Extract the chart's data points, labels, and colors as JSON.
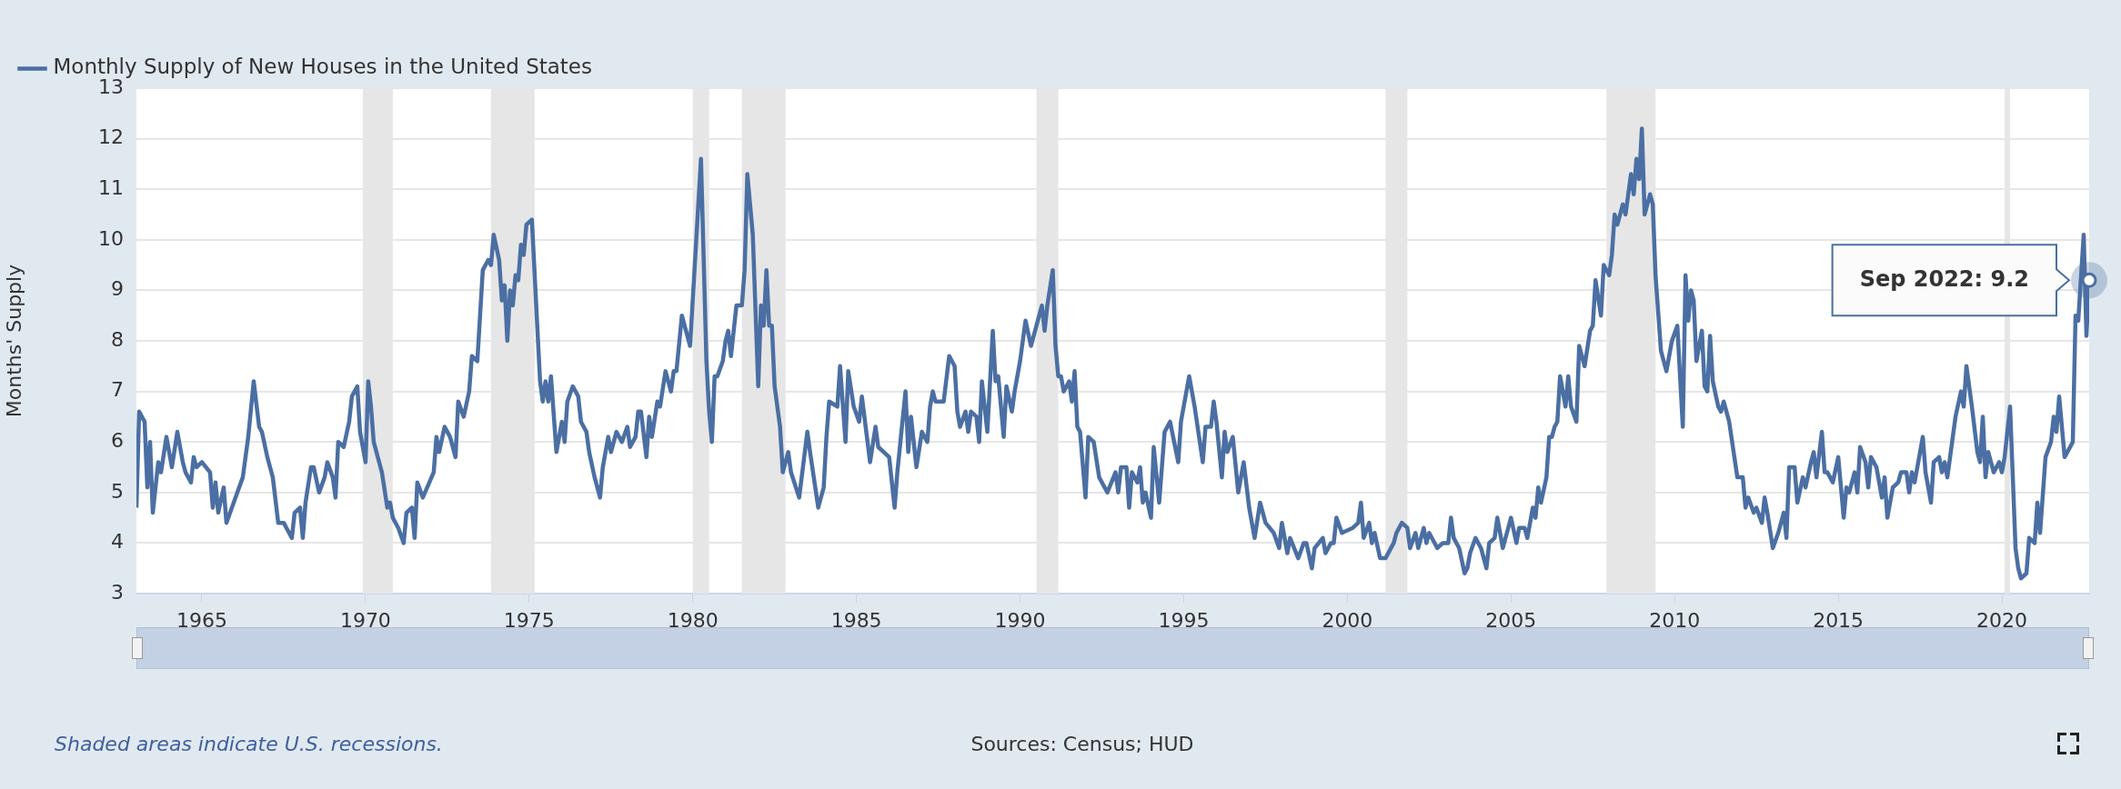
{
  "chart_data": {
    "type": "line",
    "ylabel": "Months' Supply",
    "legend": "top left",
    "grid": "y",
    "xlim": [
      "1963-01",
      "2022-09"
    ],
    "xticks": [
      "1965",
      "1970",
      "1975",
      "1980",
      "1985",
      "1990",
      "1995",
      "2000",
      "2005",
      "2010",
      "2015",
      "2020"
    ],
    "ylim": [
      3,
      13
    ],
    "yticks": [
      3,
      4,
      5,
      6,
      7,
      8,
      9,
      10,
      11,
      12,
      13
    ],
    "bands": [
      {
        "axis": "x",
        "from": "1969-12",
        "to": "1970-11",
        "color": "#e6e6e6"
      },
      {
        "axis": "x",
        "from": "1973-11",
        "to": "1975-03",
        "color": "#e6e6e6"
      },
      {
        "axis": "x",
        "from": "1980-01",
        "to": "1980-07",
        "color": "#e6e6e6"
      },
      {
        "axis": "x",
        "from": "1981-07",
        "to": "1982-11",
        "color": "#e6e6e6"
      },
      {
        "axis": "x",
        "from": "1990-07",
        "to": "1991-03",
        "color": "#e6e6e6"
      },
      {
        "axis": "x",
        "from": "2001-03",
        "to": "2001-11",
        "color": "#e6e6e6"
      },
      {
        "axis": "x",
        "from": "2007-12",
        "to": "2009-06",
        "color": "#e6e6e6"
      },
      {
        "axis": "x",
        "from": "2020-02",
        "to": "2020-04",
        "color": "#e6e6e6"
      }
    ],
    "annotations": [
      "Shaded areas indicate U.S. recessions.",
      "Sources: Census; HUD",
      {
        "text": "Sep 2022: 9.2",
        "x": "2022-09",
        "y": 9.2
      }
    ],
    "series": [
      {
        "name": "Monthly Supply of New Houses in the United States",
        "color": "#4b6fa3",
        "x": [
          "1963-01",
          "1963-02",
          "1963-04",
          "1963-05",
          "1963-06",
          "1963-07",
          "1963-09",
          "1963-10",
          "1963-12",
          "1964-02",
          "1964-04",
          "1964-06",
          "1964-07",
          "1964-09",
          "1964-10",
          "1964-11",
          "1965-01",
          "1965-04",
          "1965-05",
          "1965-06",
          "1965-07",
          "1965-09",
          "1965-10",
          "1966-02",
          "1966-04",
          "1966-06",
          "1966-08",
          "1966-10",
          "1966-11",
          "1967-01",
          "1967-03",
          "1967-05",
          "1967-07",
          "1967-08",
          "1967-10",
          "1967-11",
          "1968-01",
          "1968-02",
          "1968-03",
          "1968-05",
          "1968-06",
          "1968-08",
          "1968-10",
          "1968-11",
          "1969-01",
          "1969-02",
          "1969-03",
          "1969-05",
          "1969-07",
          "1969-08",
          "1969-10",
          "1969-11",
          "1970-01",
          "1970-02",
          "1970-03",
          "1970-04",
          "1970-07",
          "1970-09",
          "1970-10",
          "1970-11",
          "1971-01",
          "1971-03",
          "1971-04",
          "1971-06",
          "1971-07",
          "1971-08",
          "1971-10",
          "1972-02",
          "1972-03",
          "1972-04",
          "1972-06",
          "1972-08",
          "1972-10",
          "1972-11",
          "1973-01",
          "1973-03",
          "1973-04",
          "1973-06",
          "1973-08",
          "1973-10",
          "1973-11",
          "1973-12",
          "1974-02",
          "1974-03",
          "1974-04",
          "1974-05",
          "1974-06",
          "1974-07",
          "1974-08",
          "1974-09",
          "1974-10",
          "1974-11",
          "1974-12",
          "1975-02",
          "1975-05",
          "1975-06",
          "1975-07",
          "1975-08",
          "1975-09",
          "1975-11",
          "1976-01",
          "1976-02",
          "1976-03",
          "1976-05",
          "1976-07",
          "1976-08",
          "1976-10",
          "1976-11",
          "1977-01",
          "1977-03",
          "1977-04",
          "1977-06",
          "1977-07",
          "1977-09",
          "1977-11",
          "1978-01",
          "1978-02",
          "1978-04",
          "1978-05",
          "1978-06",
          "1978-08",
          "1978-09",
          "1978-10",
          "1978-12",
          "1979-01",
          "1979-03",
          "1979-05",
          "1979-06",
          "1979-07",
          "1979-09",
          "1979-12",
          "1980-04",
          "1980-06",
          "1980-07",
          "1980-08",
          "1980-09",
          "1980-10",
          "1980-12",
          "1981-01",
          "1981-02",
          "1981-03",
          "1981-05",
          "1981-07",
          "1981-08",
          "1981-09",
          "1981-11",
          "1982-01",
          "1982-02",
          "1982-03",
          "1982-04",
          "1982-05",
          "1982-06",
          "1982-07",
          "1982-09",
          "1982-10",
          "1982-12",
          "1983-01",
          "1983-04",
          "1983-07",
          "1983-08",
          "1983-11",
          "1984-01",
          "1984-02",
          "1984-03",
          "1984-06",
          "1984-07",
          "1984-09",
          "1984-10",
          "1984-12",
          "1985-02",
          "1985-03",
          "1985-06",
          "1985-08",
          "1985-09",
          "1986-01",
          "1986-03",
          "1986-04",
          "1986-07",
          "1986-08",
          "1986-09",
          "1986-11",
          "1987-01",
          "1987-03",
          "1987-04",
          "1987-05",
          "1987-06",
          "1987-09",
          "1987-11",
          "1988-01",
          "1988-02",
          "1988-03",
          "1988-05",
          "1988-06",
          "1988-07",
          "1988-09",
          "1988-10",
          "1988-11",
          "1989-01",
          "1989-03",
          "1989-04",
          "1989-05",
          "1989-07",
          "1989-08",
          "1989-10",
          "1989-11",
          "1990-01",
          "1990-03",
          "1990-05",
          "1990-09",
          "1990-10",
          "1990-11",
          "1991-01",
          "1991-02",
          "1991-03",
          "1991-04",
          "1991-05",
          "1991-07",
          "1991-08",
          "1991-09",
          "1991-10",
          "1991-11",
          "1992-01",
          "1992-02",
          "1992-04",
          "1992-06",
          "1992-09",
          "1992-12",
          "1993-01",
          "1993-02",
          "1993-04",
          "1993-05",
          "1993-06",
          "1993-08",
          "1993-09",
          "1993-10",
          "1993-11",
          "1994-01",
          "1994-02",
          "1994-04",
          "1994-06",
          "1994-08",
          "1994-11",
          "1994-12",
          "1995-03",
          "1995-05",
          "1995-08",
          "1995-09",
          "1995-11",
          "1995-12",
          "1996-01",
          "1996-03",
          "1996-04",
          "1996-05",
          "1996-07",
          "1996-09",
          "1996-11",
          "1997-01",
          "1997-03",
          "1997-05",
          "1997-07",
          "1997-10",
          "1997-12",
          "1998-01",
          "1998-03",
          "1998-04",
          "1998-07",
          "1998-09",
          "1998-10",
          "1998-12",
          "1999-01",
          "1999-04",
          "1999-05",
          "1999-07",
          "1999-08",
          "1999-09",
          "1999-11",
          "2000-03",
          "2000-05",
          "2000-06",
          "2000-07",
          "2000-09",
          "2000-10",
          "2000-11",
          "2001-01",
          "2001-03",
          "2001-06",
          "2001-07",
          "2001-09",
          "2001-11",
          "2001-12",
          "2002-02",
          "2002-03",
          "2002-05",
          "2002-06",
          "2002-07",
          "2002-10",
          "2002-12",
          "2003-02",
          "2003-03",
          "2003-04",
          "2003-06",
          "2003-08",
          "2003-09",
          "2003-10",
          "2003-12",
          "2004-02",
          "2004-04",
          "2004-05",
          "2004-07",
          "2004-08",
          "2004-10",
          "2004-12",
          "2005-01",
          "2005-03",
          "2005-04",
          "2005-06",
          "2005-07",
          "2005-09",
          "2005-10",
          "2005-11",
          "2005-12",
          "2006-02",
          "2006-03",
          "2006-04",
          "2006-05",
          "2006-06",
          "2006-07",
          "2006-09",
          "2006-10",
          "2006-11",
          "2007-01",
          "2007-02",
          "2007-04",
          "2007-06",
          "2007-07",
          "2007-08",
          "2007-10",
          "2007-11",
          "2008-01",
          "2008-02",
          "2008-03",
          "2008-04",
          "2008-06",
          "2008-07",
          "2008-09",
          "2008-10",
          "2008-11",
          "2008-12",
          "2009-01",
          "2009-02",
          "2009-04",
          "2009-05",
          "2009-06",
          "2009-08",
          "2009-09",
          "2009-10",
          "2009-12",
          "2010-02",
          "2010-04",
          "2010-05",
          "2010-06",
          "2010-07",
          "2010-08",
          "2010-09",
          "2010-11",
          "2010-12",
          "2011-01",
          "2011-02",
          "2011-03",
          "2011-05",
          "2011-06",
          "2011-07",
          "2011-09",
          "2011-12",
          "2012-02",
          "2012-03",
          "2012-04",
          "2012-06",
          "2012-07",
          "2012-09",
          "2012-10",
          "2012-11",
          "2013-01",
          "2013-03",
          "2013-05",
          "2013-06",
          "2013-07",
          "2013-09",
          "2013-10",
          "2013-12",
          "2014-01",
          "2014-03",
          "2014-04",
          "2014-05",
          "2014-07",
          "2014-08",
          "2014-09",
          "2014-11",
          "2015-01",
          "2015-03",
          "2015-04",
          "2015-05",
          "2015-07",
          "2015-08",
          "2015-09",
          "2015-11",
          "2015-12",
          "2016-01",
          "2016-03",
          "2016-05",
          "2016-06",
          "2016-07",
          "2016-09",
          "2016-11",
          "2016-12",
          "2017-02",
          "2017-03",
          "2017-04",
          "2017-05",
          "2017-08",
          "2017-09",
          "2017-11",
          "2017-12",
          "2018-02",
          "2018-03",
          "2018-04",
          "2018-05",
          "2018-07",
          "2018-08",
          "2018-10",
          "2018-11",
          "2018-12",
          "2019-02",
          "2019-04",
          "2019-05",
          "2019-06",
          "2019-07",
          "2019-08",
          "2019-10",
          "2019-12",
          "2020-01",
          "2020-02",
          "2020-04",
          "2020-06",
          "2020-07",
          "2020-08",
          "2020-10",
          "2020-11",
          "2021-01",
          "2021-02",
          "2021-03",
          "2021-05",
          "2021-07",
          "2021-08",
          "2021-09",
          "2021-10",
          "2021-12",
          "2022-01",
          "2022-03",
          "2022-04",
          "2022-05",
          "2022-07",
          "2022-08",
          "2022-09"
        ],
        "values": [
          4.7,
          6.6,
          6.4,
          5.1,
          6.0,
          4.6,
          5.6,
          5.4,
          6.1,
          5.5,
          6.2,
          5.6,
          5.4,
          5.2,
          5.7,
          5.5,
          5.6,
          5.4,
          4.7,
          5.2,
          4.6,
          5.1,
          4.4,
          5.0,
          5.3,
          6.1,
          7.2,
          6.3,
          6.2,
          5.7,
          5.3,
          4.4,
          4.4,
          4.3,
          4.1,
          4.6,
          4.7,
          4.1,
          4.8,
          5.5,
          5.5,
          5.0,
          5.3,
          5.6,
          5.3,
          4.9,
          6.0,
          5.9,
          6.4,
          6.9,
          7.1,
          6.2,
          5.6,
          7.2,
          6.7,
          6.0,
          5.4,
          4.7,
          4.8,
          4.5,
          4.3,
          4.0,
          4.6,
          4.7,
          4.1,
          5.2,
          4.9,
          5.4,
          6.1,
          5.8,
          6.3,
          6.1,
          5.7,
          6.8,
          6.5,
          7.0,
          7.7,
          7.6,
          9.4,
          9.6,
          9.5,
          10.1,
          9.6,
          8.8,
          9.1,
          8.0,
          9.0,
          8.7,
          9.3,
          9.2,
          9.9,
          9.7,
          10.3,
          10.4,
          7.2,
          6.8,
          7.2,
          6.8,
          7.3,
          5.8,
          6.4,
          6.0,
          6.8,
          7.1,
          6.9,
          6.4,
          6.2,
          5.8,
          5.3,
          4.9,
          5.5,
          6.1,
          5.8,
          6.2,
          6.0,
          6.3,
          5.9,
          6.1,
          6.6,
          6.6,
          5.7,
          6.5,
          6.1,
          6.8,
          6.7,
          7.4,
          7.0,
          7.4,
          7.4,
          8.5,
          7.9,
          11.6,
          7.6,
          6.6,
          6.0,
          7.3,
          7.3,
          7.6,
          8.0,
          8.2,
          7.7,
          8.7,
          8.7,
          9.4,
          11.3,
          10.1,
          7.1,
          8.7,
          8.3,
          9.4,
          8.3,
          8.3,
          7.1,
          6.3,
          5.4,
          5.8,
          5.4,
          4.9,
          6.2,
          5.8,
          4.7,
          5.1,
          6.1,
          6.8,
          6.7,
          7.5,
          6.0,
          7.4,
          6.7,
          6.4,
          6.9,
          5.6,
          6.3,
          5.9,
          5.7,
          4.7,
          5.4,
          7.0,
          5.8,
          6.5,
          5.5,
          6.2,
          6.0,
          6.7,
          7.0,
          6.8,
          6.8,
          7.7,
          7.5,
          6.6,
          6.3,
          6.6,
          6.2,
          6.6,
          6.5,
          6.0,
          7.2,
          6.2,
          8.2,
          7.2,
          7.3,
          6.1,
          7.1,
          6.6,
          7.0,
          7.6,
          8.4,
          7.9,
          8.7,
          8.2,
          8.7,
          9.4,
          7.9,
          7.3,
          7.3,
          7.0,
          7.2,
          6.8,
          7.4,
          6.3,
          6.2,
          4.9,
          6.1,
          6.0,
          5.3,
          5.0,
          5.4,
          5.0,
          5.5,
          5.5,
          4.7,
          5.4,
          5.2,
          5.5,
          4.8,
          5.0,
          4.5,
          5.9,
          4.8,
          6.2,
          6.4,
          5.6,
          6.4,
          7.3,
          6.7,
          5.6,
          6.3,
          6.3,
          6.8,
          6.4,
          5.3,
          6.2,
          5.8,
          6.1,
          5.0,
          5.6,
          4.7,
          4.1,
          4.8,
          4.4,
          4.2,
          3.9,
          4.4,
          3.8,
          4.1,
          3.7,
          4.0,
          4.0,
          3.5,
          3.9,
          4.1,
          3.8,
          4.0,
          4.0,
          4.5,
          4.2,
          4.3,
          4.4,
          4.8,
          4.1,
          4.4,
          4.0,
          4.2,
          3.7,
          3.7,
          4.0,
          4.2,
          4.4,
          4.3,
          3.9,
          4.2,
          3.9,
          4.3,
          4.0,
          4.2,
          3.9,
          4.0,
          4.0,
          4.5,
          4.1,
          3.9,
          3.4,
          3.5,
          3.8,
          4.1,
          3.9,
          3.5,
          4.0,
          4.1,
          4.5,
          3.9,
          4.3,
          4.5,
          4.0,
          4.3,
          4.3,
          4.1,
          4.7,
          4.5,
          5.1,
          4.8,
          5.3,
          6.1,
          6.1,
          6.3,
          6.4,
          7.3,
          6.7,
          7.3,
          6.7,
          6.4,
          7.9,
          7.5,
          8.2,
          8.3,
          9.2,
          8.5,
          9.5,
          9.3,
          9.7,
          10.5,
          10.3,
          10.7,
          10.5,
          11.3,
          10.9,
          11.6,
          11.2,
          12.2,
          10.5,
          10.9,
          10.7,
          9.3,
          7.8,
          7.6,
          7.4,
          8.0,
          8.3,
          6.3,
          9.3,
          8.4,
          9.0,
          8.8,
          7.6,
          8.2,
          7.1,
          7.0,
          8.1,
          7.2,
          6.7,
          6.6,
          6.8,
          6.4,
          5.3,
          5.3,
          4.7,
          4.9,
          4.6,
          4.7,
          4.4,
          4.9,
          4.6,
          3.9,
          4.2,
          4.6,
          4.1,
          5.5,
          5.5,
          4.8,
          5.3,
          5.1,
          5.6,
          5.8,
          5.3,
          6.2,
          5.4,
          5.4,
          5.2,
          5.7,
          4.5,
          5.1,
          5.0,
          5.4,
          5.0,
          5.9,
          5.6,
          5.1,
          5.7,
          5.5,
          4.9,
          5.3,
          4.5,
          5.1,
          5.2,
          5.4,
          5.4,
          5.0,
          5.4,
          5.2,
          6.1,
          5.4,
          4.8,
          5.6,
          5.7,
          5.4,
          5.6,
          5.3,
          6.1,
          6.5,
          7.0,
          6.7,
          7.5,
          6.7,
          5.8,
          5.6,
          6.5,
          5.3,
          5.8,
          5.4,
          5.6,
          5.4,
          5.7,
          6.7,
          3.9,
          3.5,
          3.3,
          3.4,
          4.1,
          4.0,
          4.8,
          4.2,
          5.7,
          6.0,
          6.5,
          6.2,
          6.9,
          5.7,
          5.8,
          6.0,
          8.5,
          8.4,
          10.1,
          8.1,
          9.2
        ]
      }
    ]
  }
}
